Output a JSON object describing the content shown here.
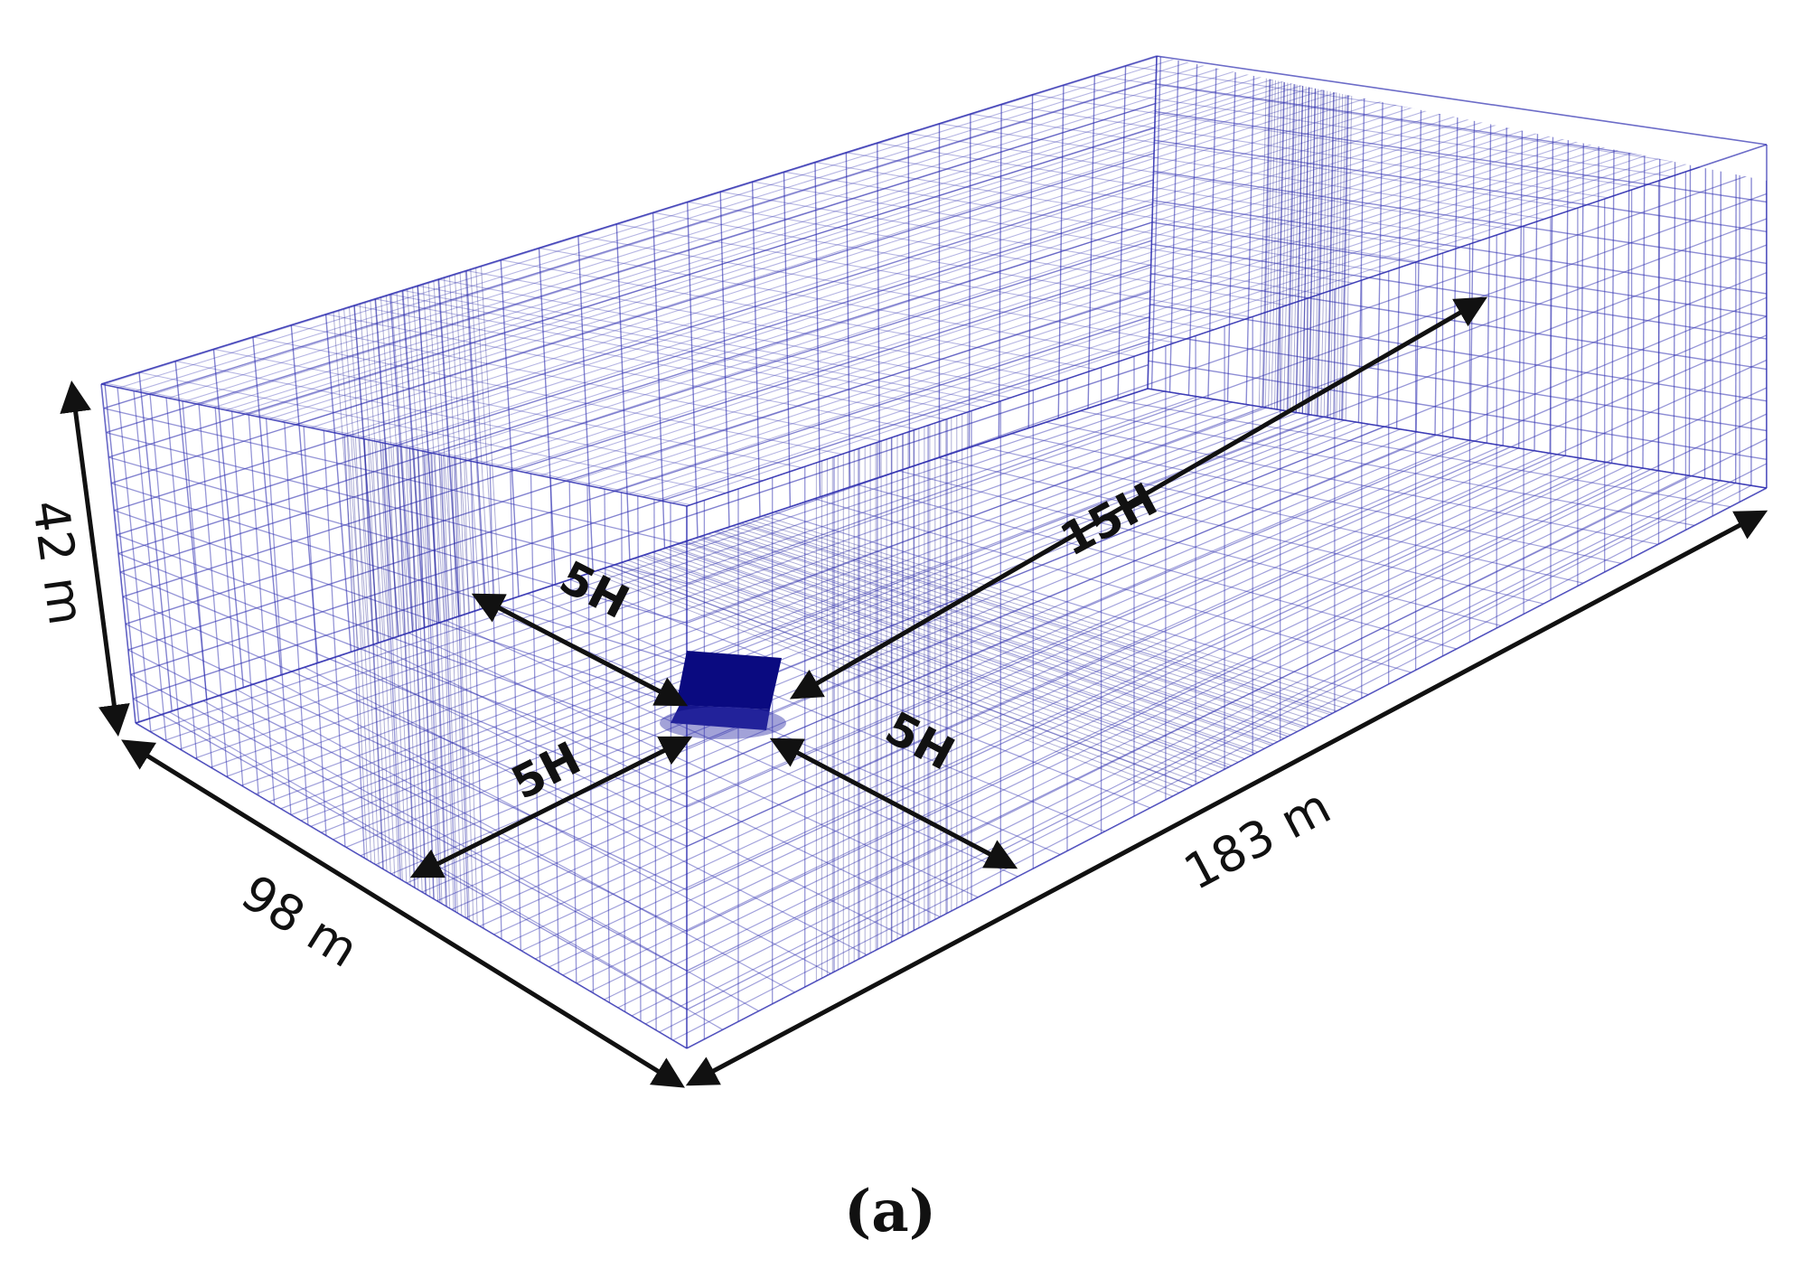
{
  "figure": {
    "caption": "(a)",
    "dimensions": {
      "height": "42 m",
      "width": "98 m",
      "length": "183 m"
    },
    "distances": {
      "upstream": "5H",
      "side_left": "5H",
      "side_right": "5H",
      "downstream": "15H"
    },
    "colors": {
      "mesh": "#2e2eb0",
      "mesh_dense": "#1a1a8c",
      "building": "#0a0a80",
      "arrows": "#111111",
      "background": "#ffffff"
    }
  }
}
